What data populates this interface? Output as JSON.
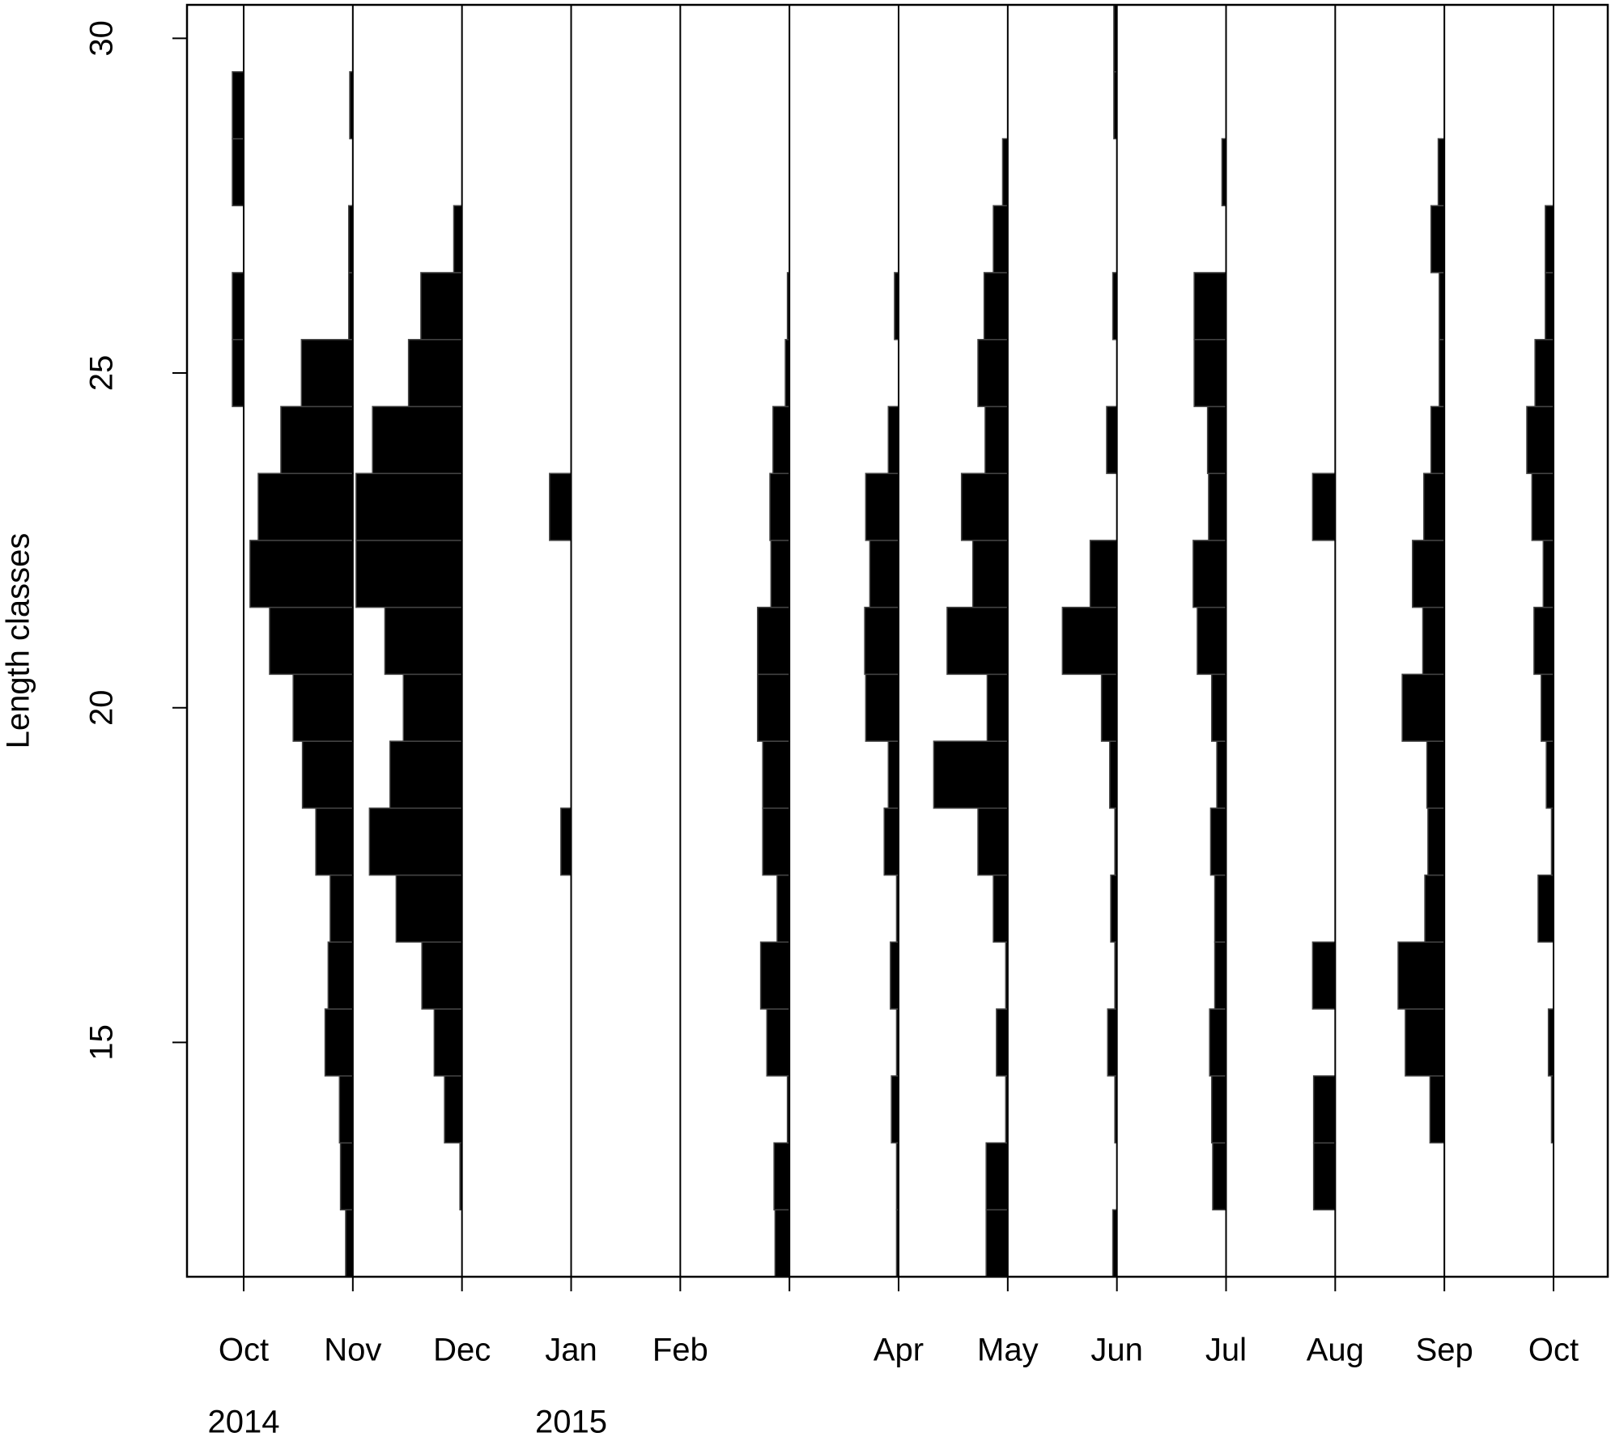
{
  "chart_data": {
    "type": "length_frequency",
    "y_label": "Length classes",
    "ylim": [
      11.5,
      30.5
    ],
    "yticks": [
      15,
      20,
      25,
      30
    ],
    "length_classes": [
      12,
      13,
      14,
      15,
      16,
      17,
      18,
      19,
      20,
      21,
      22,
      23,
      24,
      25,
      26,
      27,
      28,
      29,
      30
    ],
    "categories": [
      "Oct",
      "Nov",
      "Dec",
      "Jan",
      "Feb",
      null,
      "Apr",
      "May",
      "Jun",
      "Jul",
      "Aug",
      "Sep",
      "Oct"
    ],
    "years": [
      "2014",
      null,
      null,
      "2015",
      null,
      null,
      null,
      null,
      null,
      null,
      null,
      null,
      null
    ],
    "color": "#000000",
    "values": [
      [
        0,
        0,
        0,
        0,
        0,
        0,
        0,
        0,
        0,
        0,
        0,
        0,
        0,
        11,
        11,
        0,
        11,
        11,
        0
      ],
      [
        7,
        12,
        13,
        27,
        24,
        22,
        36,
        49,
        58,
        81,
        100,
        92,
        70,
        50,
        4,
        4,
        0,
        3,
        0
      ],
      [
        0,
        2,
        17,
        27,
        39,
        64,
        90,
        70,
        57,
        75,
        103,
        103,
        87,
        52,
        40,
        8,
        0,
        0,
        0
      ],
      [
        0,
        0,
        0,
        0,
        0,
        0,
        10,
        0,
        0,
        0,
        0,
        21,
        0,
        0,
        0,
        0,
        0,
        0,
        0
      ],
      [
        0,
        0,
        0,
        0,
        0,
        0,
        0,
        0,
        0,
        0,
        0,
        0,
        0,
        0,
        0,
        0,
        0,
        0,
        0
      ],
      [
        14,
        15,
        2,
        22,
        28,
        12,
        26,
        26,
        31,
        31,
        18,
        19,
        16,
        4,
        2,
        0,
        0,
        0,
        0
      ],
      [
        2,
        2,
        7,
        2,
        8,
        2,
        14,
        10,
        32,
        33,
        28,
        32,
        10,
        0,
        4,
        0,
        0,
        0,
        0
      ],
      [
        21,
        21,
        2,
        11,
        2,
        14,
        29,
        72,
        20,
        59,
        34,
        45,
        22,
        29,
        23,
        14,
        5,
        0,
        0
      ],
      [
        4,
        0,
        2,
        9,
        2,
        6,
        2,
        7,
        15,
        53,
        26,
        0,
        10,
        0,
        4,
        0,
        0,
        3,
        3
      ],
      [
        0,
        13,
        14,
        16,
        11,
        11,
        15,
        9,
        14,
        28,
        32,
        17,
        18,
        31,
        31,
        0,
        4,
        0,
        0
      ],
      [
        0,
        21,
        21,
        0,
        22,
        0,
        0,
        0,
        0,
        0,
        0,
        22,
        0,
        0,
        0,
        0,
        0,
        0,
        0
      ],
      [
        0,
        0,
        14,
        38,
        45,
        19,
        16,
        17,
        41,
        21,
        31,
        20,
        13,
        5,
        5,
        13,
        6,
        0,
        0
      ],
      [
        0,
        0,
        2,
        5,
        0,
        15,
        2,
        7,
        12,
        19,
        10,
        21,
        26,
        18,
        8,
        8,
        0,
        0,
        0
      ]
    ]
  }
}
